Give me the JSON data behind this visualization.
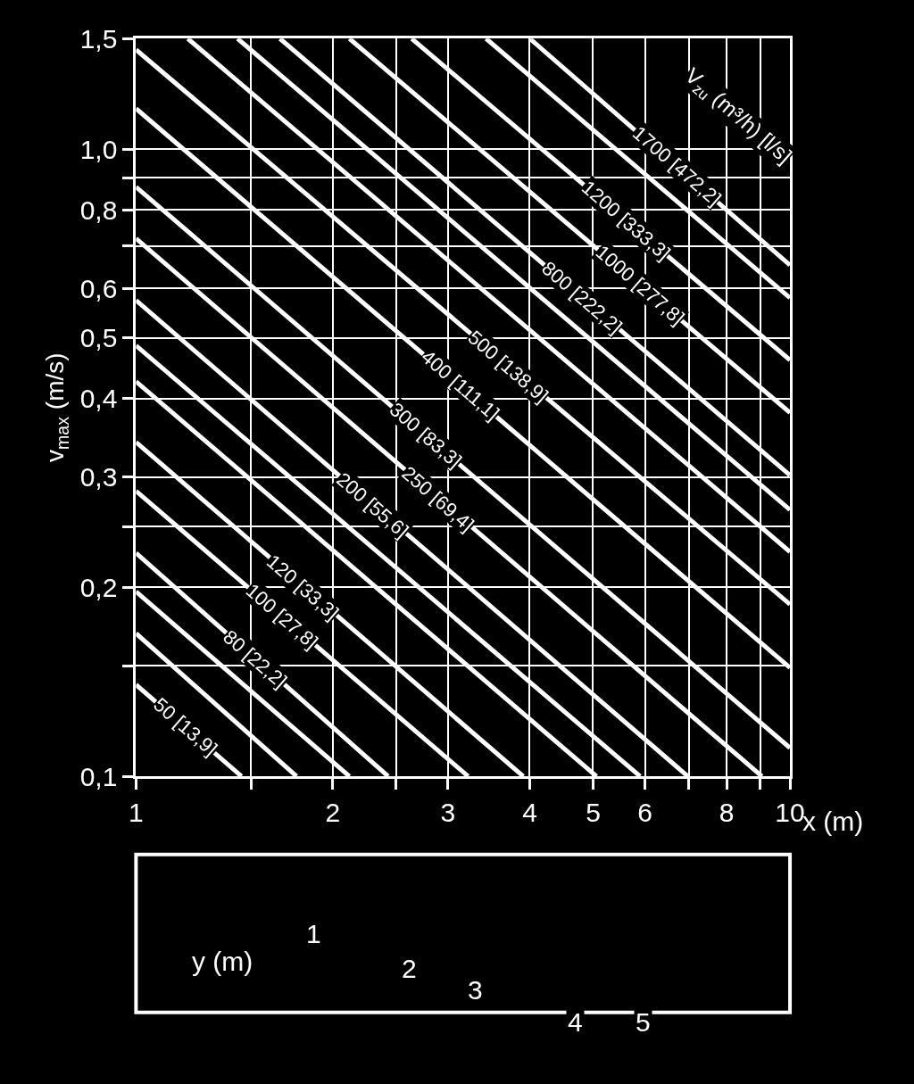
{
  "chart_data": [
    {
      "type": "line",
      "ylabel": "v$_{max}$ (m/s)",
      "xlabel": "x (m)",
      "log": "xy",
      "grid": true,
      "marker": "none",
      "line_style": "solid",
      "xlim": [
        1,
        10
      ],
      "ylim": [
        0.1,
        1.5
      ],
      "xticks": [
        1,
        {
          "value": 1.5,
          "label": null
        },
        2,
        {
          "value": 2.5,
          "label": null
        },
        3,
        4,
        5,
        6,
        {
          "value": 7,
          "label": null
        },
        8,
        {
          "value": 9,
          "label": null
        },
        10
      ],
      "yticks": [
        {
          "value": 0.1,
          "label": "0,1"
        },
        {
          "value": 0.15,
          "label": null
        },
        {
          "value": 0.2,
          "label": "0,2"
        },
        {
          "value": 0.25,
          "label": null
        },
        {
          "value": 0.3,
          "label": "0,3"
        },
        {
          "value": 0.4,
          "label": "0,4"
        },
        {
          "value": 0.5,
          "label": "0,5"
        },
        {
          "value": 0.6,
          "label": "0,6"
        },
        {
          "value": 0.7,
          "label": null
        },
        {
          "value": 0.8,
          "label": "0,8"
        },
        {
          "value": 0.9,
          "label": null
        },
        {
          "value": 1.0,
          "label": "1,0"
        },
        {
          "value": 1.5,
          "label": "1,5"
        }
      ],
      "series": [
        {
          "color": "#ffffff",
          "x": [
            4.0,
            10
          ],
          "values": [
            1.5,
            0.653
          ]
        },
        {
          "color": "#ffffff",
          "x": [
            3.43,
            10
          ],
          "values": [
            1.5,
            0.579
          ]
        },
        {
          "color": "#ffffff",
          "x": [
            2.64,
            10
          ],
          "values": [
            1.5,
            0.461
          ]
        },
        {
          "color": "#ffffff",
          "x": [
            2.12,
            10
          ],
          "values": [
            1.5,
            0.38
          ]
        },
        {
          "color": "#ffffff",
          "x": [
            1.66,
            10
          ],
          "values": [
            1.5,
            0.302
          ]
        },
        {
          "color": "#ffffff",
          "x": [
            1.43,
            10
          ],
          "values": [
            1.5,
            0.266
          ]
        },
        {
          "color": "#ffffff",
          "x": [
            1.2,
            10
          ],
          "values": [
            1.5,
            0.228
          ]
        },
        {
          "color": "#ffffff",
          "x": [
            1,
            10
          ],
          "values": [
            1.44,
            0.188
          ]
        },
        {
          "color": "#ffffff",
          "x": [
            1,
            10
          ],
          "values": [
            1.16,
            0.149
          ]
        },
        {
          "color": "#ffffff",
          "x": [
            1,
            10
          ],
          "values": [
            0.87,
            0.111
          ]
        },
        {
          "color": "#ffffff",
          "x": [
            1,
            9.06
          ],
          "values": [
            0.72,
            0.1
          ]
        },
        {
          "color": "#ffffff",
          "x": [
            1,
            6.98
          ],
          "values": [
            0.574,
            0.1
          ]
        },
        {
          "color": "#ffffff",
          "x": [
            1,
            5.9
          ],
          "values": [
            0.486,
            0.1
          ]
        },
        {
          "color": "#ffffff",
          "x": [
            1,
            5.06
          ],
          "values": [
            0.426,
            0.1
          ]
        },
        {
          "color": "#ffffff",
          "x": [
            1,
            3.91
          ],
          "values": [
            0.341,
            0.1
          ]
        },
        {
          "color": "#ffffff",
          "x": [
            1,
            3.22
          ],
          "values": [
            0.285,
            0.1
          ]
        },
        {
          "color": "#ffffff",
          "x": [
            1,
            2.43
          ],
          "values": [
            0.227,
            0.1
          ]
        },
        {
          "color": "#ffffff",
          "x": [
            1,
            2.12
          ],
          "values": [
            0.197,
            0.1
          ]
        },
        {
          "color": "#ffffff",
          "x": [
            1,
            1.76
          ],
          "values": [
            0.169,
            0.1
          ]
        },
        {
          "color": "#ffffff",
          "x": [
            1,
            1.45
          ],
          "values": [
            0.14,
            0.1
          ]
        }
      ],
      "annotations": [
        "V$_{zu}$ (m³/h) [l/s]",
        {
          "text": "1700 [472,2]",
          "x": 6.7,
          "y": 0.94
        },
        {
          "text": "1200 [333,3]",
          "x": 5.6,
          "y": 0.77
        },
        {
          "text": "1000 [277,8]",
          "x": 5.9,
          "y": 0.607
        },
        {
          "text": "800 [222,2]",
          "x": 4.81,
          "y": 0.58
        },
        {
          "text": "500 [138,9]",
          "x": 3.7,
          "y": 0.45
        },
        {
          "text": "400 [111,1]",
          "x": 3.13,
          "y": 0.42
        },
        {
          "text": "300 [83,3]",
          "x": 2.77,
          "y": 0.35
        },
        {
          "text": "250 [69,4]",
          "x": 2.9,
          "y": 0.277
        },
        {
          "text": "200 [55,6]",
          "x": 2.3,
          "y": 0.27
        },
        {
          "text": "120 [33,3]",
          "x": 1.8,
          "y": 0.2
        },
        {
          "text": "100 [27,8]",
          "x": 1.67,
          "y": 0.18
        },
        {
          "text": "80 [22,2]",
          "x": 1.52,
          "y": 0.154
        },
        {
          "text": "50 [13,9]",
          "x": 1.19,
          "y": 0.12
        }
      ]
    },
    {
      "type": "other",
      "annotations": [
        "y (m)",
        "1",
        "2",
        "3",
        "4",
        "5"
      ]
    }
  ]
}
